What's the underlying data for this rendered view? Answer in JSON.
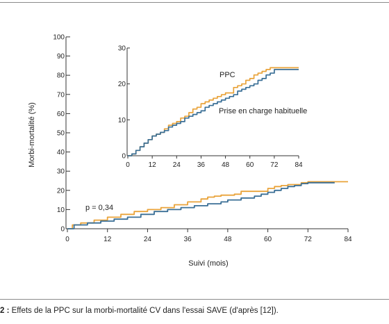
{
  "colors": {
    "ppc": "#E9A33A",
    "usual_care": "#3A6F96",
    "axis": "#333333"
  },
  "chart_data": [
    {
      "id": "main",
      "type": "line",
      "xlabel": "Suivi (mois)",
      "ylabel": "Morbi-mortalité (%)",
      "xlim": [
        0,
        84
      ],
      "ylim": [
        0,
        100
      ],
      "x_ticks": [
        "0",
        "12",
        "24",
        "36",
        "48",
        "60",
        "72",
        "84"
      ],
      "y_ticks": [
        "0",
        "10",
        "20",
        "30",
        "40",
        "50",
        "60",
        "70",
        "80",
        "90",
        "100"
      ],
      "annotation": "p = 0,34",
      "series": [
        {
          "key": "ppc",
          "step": true,
          "points": [
            [
              0,
              0
            ],
            [
              1.5,
              2
            ],
            [
              4,
              3
            ],
            [
              8,
              4.5
            ],
            [
              12,
              6
            ],
            [
              16,
              7.5
            ],
            [
              20,
              9
            ],
            [
              24,
              10
            ],
            [
              28,
              11
            ],
            [
              32,
              12.5
            ],
            [
              36,
              14
            ],
            [
              40,
              15.5
            ],
            [
              42,
              16.5
            ],
            [
              44,
              17
            ],
            [
              46,
              17.5
            ],
            [
              48,
              17.5
            ],
            [
              50,
              18
            ],
            [
              52,
              19.5
            ],
            [
              56,
              19.5
            ],
            [
              58,
              19.5
            ],
            [
              60,
              21
            ],
            [
              62,
              22
            ],
            [
              64,
              22.5
            ],
            [
              66,
              23
            ],
            [
              68,
              23
            ],
            [
              70,
              24
            ],
            [
              72,
              24.5
            ],
            [
              78,
              24.5
            ],
            [
              84,
              24.5
            ]
          ]
        },
        {
          "key": "usual",
          "step": true,
          "points": [
            [
              0,
              0
            ],
            [
              2,
              2
            ],
            [
              6,
              3
            ],
            [
              10,
              4
            ],
            [
              14,
              5
            ],
            [
              18,
              6
            ],
            [
              22,
              7.5
            ],
            [
              26,
              9
            ],
            [
              30,
              10
            ],
            [
              34,
              11
            ],
            [
              38,
              12
            ],
            [
              42,
              13
            ],
            [
              46,
              14
            ],
            [
              48,
              15
            ],
            [
              52,
              16
            ],
            [
              56,
              17
            ],
            [
              58,
              18
            ],
            [
              60,
              19
            ],
            [
              62,
              20
            ],
            [
              64,
              21
            ],
            [
              66,
              22
            ],
            [
              68,
              22.5
            ],
            [
              70,
              23.5
            ],
            [
              72,
              24
            ],
            [
              76,
              24
            ],
            [
              80,
              24
            ]
          ]
        }
      ]
    },
    {
      "id": "inset",
      "type": "line",
      "xlim": [
        0,
        84
      ],
      "ylim": [
        0,
        30
      ],
      "x_ticks": [
        "0",
        "12",
        "24",
        "36",
        "48",
        "60",
        "72",
        "84"
      ],
      "y_ticks": [
        "0",
        "10",
        "20",
        "30"
      ],
      "series": [
        {
          "key": "ppc",
          "name": "PPC",
          "step": true,
          "points": [
            [
              0,
              0
            ],
            [
              2,
              0.5
            ],
            [
              4,
              1.5
            ],
            [
              6,
              2.5
            ],
            [
              8,
              3.5
            ],
            [
              10,
              4.5
            ],
            [
              12,
              5.5
            ],
            [
              14,
              6
            ],
            [
              16,
              6.5
            ],
            [
              18,
              7.5
            ],
            [
              20,
              8.5
            ],
            [
              22,
              9
            ],
            [
              24,
              9.5
            ],
            [
              26,
              10.5
            ],
            [
              28,
              11
            ],
            [
              30,
              12
            ],
            [
              32,
              13
            ],
            [
              34,
              13.5
            ],
            [
              36,
              14.5
            ],
            [
              38,
              15
            ],
            [
              40,
              15.5
            ],
            [
              42,
              16
            ],
            [
              44,
              16.5
            ],
            [
              46,
              17
            ],
            [
              48,
              17.5
            ],
            [
              50,
              17.5
            ],
            [
              52,
              19
            ],
            [
              54,
              19.5
            ],
            [
              56,
              20
            ],
            [
              58,
              21
            ],
            [
              60,
              21.5
            ],
            [
              62,
              22.5
            ],
            [
              64,
              23
            ],
            [
              66,
              23.5
            ],
            [
              68,
              24
            ],
            [
              70,
              24.5
            ],
            [
              72,
              24.5
            ],
            [
              80,
              24.5
            ],
            [
              84,
              24.5
            ]
          ]
        },
        {
          "key": "usual",
          "name": "Prise en charge habituelle",
          "step": true,
          "points": [
            [
              0,
              0
            ],
            [
              2,
              0.5
            ],
            [
              4,
              1.5
            ],
            [
              6,
              2.5
            ],
            [
              8,
              3.5
            ],
            [
              10,
              4.5
            ],
            [
              12,
              5.5
            ],
            [
              14,
              6
            ],
            [
              16,
              6.5
            ],
            [
              18,
              7
            ],
            [
              20,
              8
            ],
            [
              22,
              8.5
            ],
            [
              24,
              9
            ],
            [
              26,
              9.5
            ],
            [
              28,
              10.5
            ],
            [
              30,
              11
            ],
            [
              32,
              11.5
            ],
            [
              34,
              12
            ],
            [
              36,
              12.5
            ],
            [
              38,
              13.5
            ],
            [
              40,
              14
            ],
            [
              42,
              14.5
            ],
            [
              44,
              15
            ],
            [
              46,
              15.5
            ],
            [
              48,
              16
            ],
            [
              50,
              16.5
            ],
            [
              52,
              17
            ],
            [
              54,
              18
            ],
            [
              56,
              18.5
            ],
            [
              58,
              19
            ],
            [
              60,
              19.5
            ],
            [
              62,
              20
            ],
            [
              64,
              21
            ],
            [
              66,
              21.5
            ],
            [
              68,
              22.5
            ],
            [
              70,
              23
            ],
            [
              72,
              24
            ],
            [
              76,
              24
            ],
            [
              80,
              24
            ],
            [
              84,
              24
            ]
          ]
        }
      ]
    }
  ],
  "caption": {
    "number": "2 :",
    "text": " Effets de la PPC sur la morbi-mortalité CV dans l'essai SAVE (d'après [12])."
  }
}
